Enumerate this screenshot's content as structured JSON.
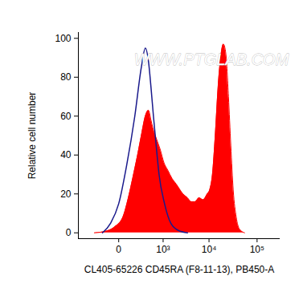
{
  "chart_data": {
    "type": "histogram",
    "x_label": "CL405-65226 CD45RA (F8-11-13), PB450-A",
    "y_label": "Relative cell number",
    "annotations": [
      "WWW.PTGLAB.COM"
    ],
    "xlim": [
      -800,
      300000
    ],
    "xticks": [
      0,
      {
        "value": 1000,
        "label": "10³"
      },
      {
        "value": 10000,
        "label": "10⁴"
      },
      {
        "value": 100000,
        "label": "10⁵"
      }
    ],
    "ylim": [
      -3,
      103
    ],
    "yticks": [
      0,
      20,
      40,
      60,
      80,
      100
    ],
    "log": "x",
    "grid": false,
    "series": [
      {
        "type": "area",
        "color": "#ff0000",
        "x": [
          -300,
          -100,
          -30,
          30,
          80,
          130,
          200,
          280,
          350,
          430,
          500,
          560,
          700,
          850,
          1050,
          1300,
          1600,
          2000,
          2800,
          3500,
          4200,
          5100,
          6200,
          7500,
          9200,
          10300,
          11800,
          13500,
          15500,
          17500,
          20000,
          22500,
          25500,
          28500,
          32000,
          37000,
          43000,
          55000
        ],
        "values": [
          0,
          1,
          3,
          8,
          18,
          28,
          40,
          52,
          60,
          63,
          58,
          54,
          48,
          43,
          36,
          32,
          28,
          25,
          20,
          18,
          16,
          16,
          18,
          17,
          20,
          22,
          30,
          50,
          75,
          90,
          97,
          92,
          70,
          45,
          22,
          8,
          2,
          0
        ]
      },
      {
        "type": "line",
        "color": "#1a1a8c",
        "x": [
          -160,
          -64,
          0,
          64,
          158,
          265,
          350,
          430,
          500,
          580,
          700,
          800,
          1080,
          1500,
          2300,
          3500
        ],
        "values": [
          0,
          5,
          15,
          35,
          60,
          85,
          95,
          88,
          75,
          60,
          42,
          30,
          15,
          5,
          1,
          0
        ]
      }
    ]
  }
}
